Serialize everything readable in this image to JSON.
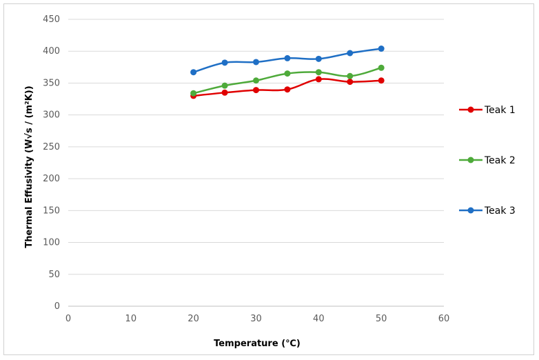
{
  "chart_data": {
    "type": "line",
    "title": "",
    "xlabel": "Temperature (℃)",
    "ylabel": "Thermal Effusivity (W√s / (m²K))",
    "xlim": [
      0,
      60
    ],
    "ylim": [
      0,
      450
    ],
    "x_ticks": [
      0,
      10,
      20,
      30,
      40,
      50,
      60
    ],
    "y_ticks": [
      0,
      50,
      100,
      150,
      200,
      250,
      300,
      350,
      400,
      450
    ],
    "x_tick_labels": [
      "0",
      "10",
      "20",
      "30",
      "40",
      "50",
      "60"
    ],
    "y_tick_labels": [
      "0",
      "50",
      "100",
      "150",
      "200",
      "250",
      "300",
      "350",
      "400",
      "450"
    ],
    "grid": "horizontal",
    "legend_position": "right",
    "x": [
      20,
      25,
      30,
      35,
      40,
      45,
      50
    ],
    "series": [
      {
        "name": "Teak 1",
        "color": "#e00000",
        "values": [
          330,
          335,
          339,
          340,
          356,
          352,
          354
        ]
      },
      {
        "name": "Teak 2",
        "color": "#4eaa3a",
        "values": [
          334,
          346,
          354,
          365,
          367,
          361,
          374
        ]
      },
      {
        "name": "Teak 3",
        "color": "#1f6fc5",
        "values": [
          367,
          382,
          383,
          389,
          388,
          397,
          404
        ]
      }
    ]
  }
}
